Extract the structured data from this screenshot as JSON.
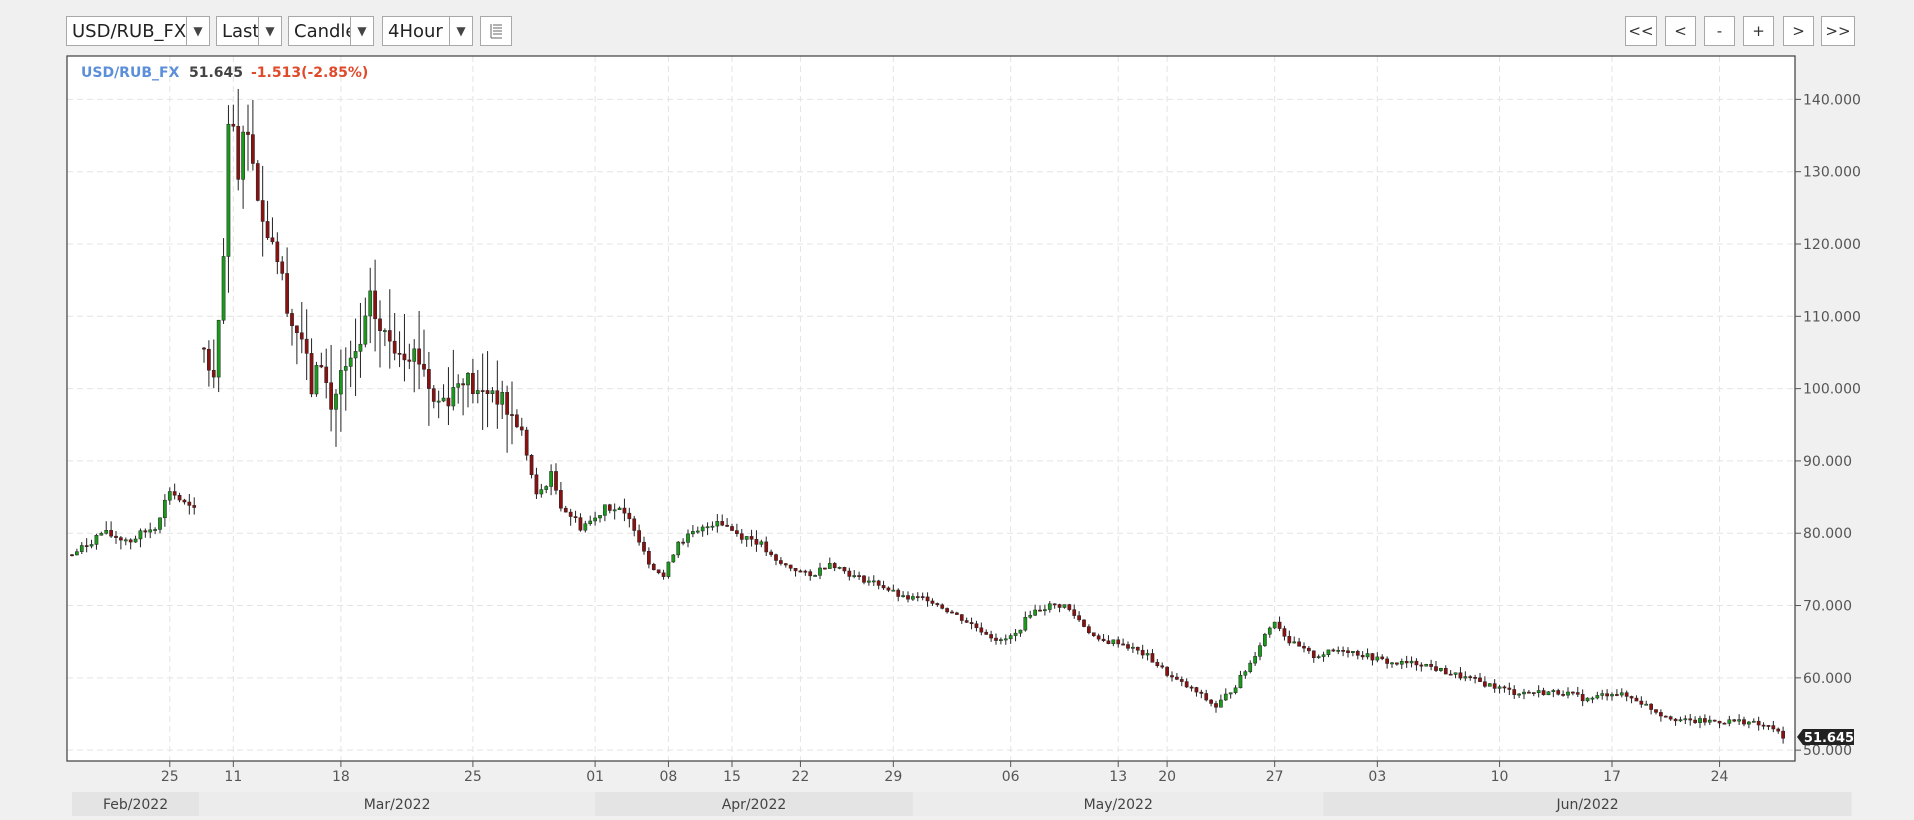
{
  "toolbar": {
    "symbol": "USD/RUB_FX",
    "price_field": "Last",
    "chart_style": "Candle",
    "interval": "4Hour",
    "dropdown_arrow": "▼",
    "nav": {
      "first": "<<",
      "prev": "<",
      "zoom_out": "-",
      "zoom_in": "+",
      "next": ">",
      "last": ">>"
    }
  },
  "legend": {
    "symbol": "USD/RUB_FX",
    "last": "51.645",
    "change": "-1.513(-2.85%)"
  },
  "price_tag": "51.645",
  "colors": {
    "up": "#1a9a1a",
    "down": "#8b1010",
    "symbol_text": "#5b8fd8",
    "change_text": "#e04a2a",
    "grid": "#e4e4e4"
  },
  "chart_data": {
    "type": "candlestick",
    "title": "USD/RUB_FX",
    "xlabel": "",
    "ylabel": "",
    "ylim": [
      48.5,
      146
    ],
    "y_ticks": [
      "50.000",
      "60.000",
      "70.000",
      "80.000",
      "90.000",
      "100.000",
      "110.000",
      "120.000",
      "130.000",
      "140.000"
    ],
    "x_ticks": [
      "25",
      "11",
      "18",
      "25",
      "01",
      "08",
      "15",
      "22",
      "29",
      "06",
      "13",
      "20",
      "27",
      "03",
      "10",
      "17",
      "24"
    ],
    "x_tick_index": [
      20,
      33,
      55,
      82,
      107,
      122,
      135,
      149,
      168,
      192,
      214,
      224,
      246,
      267,
      292,
      315,
      337
    ],
    "months": [
      "Feb/2022",
      "Mar/2022",
      "Apr/2022",
      "May/2022",
      "Jun/2022"
    ],
    "month_ranges": [
      [
        0,
        26
      ],
      [
        26,
        107
      ],
      [
        107,
        172
      ],
      [
        172,
        256
      ],
      [
        256,
        364
      ]
    ],
    "x_range": [
      0,
      351
    ],
    "grid": true,
    "close_keypoints": [
      [
        0,
        77
      ],
      [
        6,
        80
      ],
      [
        12,
        79
      ],
      [
        17,
        81
      ],
      [
        20,
        86
      ],
      [
        23,
        84
      ],
      [
        25,
        83
      ],
      [
        26,
        null
      ],
      [
        27,
        105
      ],
      [
        28,
        103
      ],
      [
        29,
        101
      ],
      [
        30,
        108
      ],
      [
        31,
        118
      ],
      [
        32,
        135
      ],
      [
        33,
        136
      ],
      [
        34,
        128
      ],
      [
        35,
        137
      ],
      [
        37,
        132
      ],
      [
        39,
        123
      ],
      [
        41,
        121
      ],
      [
        43,
        115
      ],
      [
        45,
        109
      ],
      [
        47,
        107
      ],
      [
        49,
        100
      ],
      [
        51,
        104
      ],
      [
        53,
        97
      ],
      [
        55,
        102
      ],
      [
        57,
        103
      ],
      [
        59,
        106
      ],
      [
        61,
        112
      ],
      [
        63,
        108
      ],
      [
        66,
        106
      ],
      [
        70,
        105
      ],
      [
        72,
        103
      ],
      [
        74,
        98
      ],
      [
        77,
        99
      ],
      [
        80,
        102
      ],
      [
        83,
        99
      ],
      [
        86,
        100
      ],
      [
        89,
        97
      ],
      [
        92,
        94
      ],
      [
        95,
        85
      ],
      [
        98,
        88
      ],
      [
        100,
        84
      ],
      [
        104,
        81
      ],
      [
        107,
        82
      ],
      [
        109,
        84
      ],
      [
        112,
        83
      ],
      [
        115,
        81
      ],
      [
        118,
        76
      ],
      [
        121,
        74
      ],
      [
        124,
        79
      ],
      [
        128,
        80
      ],
      [
        132,
        82
      ],
      [
        136,
        80
      ],
      [
        140,
        79
      ],
      [
        144,
        76
      ],
      [
        148,
        75
      ],
      [
        151,
        74
      ],
      [
        155,
        76
      ],
      [
        160,
        74
      ],
      [
        165,
        73
      ],
      [
        170,
        71
      ],
      [
        175,
        71
      ],
      [
        180,
        69
      ],
      [
        185,
        67
      ],
      [
        190,
        65
      ],
      [
        193,
        66
      ],
      [
        196,
        69
      ],
      [
        200,
        70
      ],
      [
        203,
        70
      ],
      [
        206,
        68
      ],
      [
        210,
        65
      ],
      [
        214,
        65
      ],
      [
        220,
        63
      ],
      [
        225,
        60
      ],
      [
        230,
        58
      ],
      [
        234,
        56
      ],
      [
        238,
        59
      ],
      [
        241,
        62
      ],
      [
        244,
        66
      ],
      [
        246,
        68
      ],
      [
        249,
        65
      ],
      [
        254,
        63
      ],
      [
        260,
        64
      ],
      [
        265,
        63
      ],
      [
        270,
        62
      ],
      [
        276,
        62
      ],
      [
        280,
        61
      ],
      [
        285,
        60
      ],
      [
        290,
        59
      ],
      [
        295,
        58
      ],
      [
        300,
        58
      ],
      [
        305,
        58
      ],
      [
        310,
        57
      ],
      [
        315,
        58
      ],
      [
        320,
        57
      ],
      [
        325,
        55
      ],
      [
        330,
        54
      ],
      [
        336,
        54
      ],
      [
        342,
        54
      ],
      [
        348,
        53
      ],
      [
        350,
        51.645
      ]
    ]
  }
}
